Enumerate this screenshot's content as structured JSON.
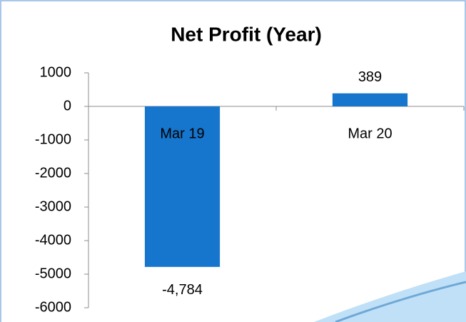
{
  "chart_data": {
    "type": "bar",
    "title": "Net Profit (Year)",
    "categories": [
      "Mar 19",
      "Mar 20"
    ],
    "values": [
      -4784,
      389
    ],
    "value_labels": [
      "-4,784",
      "389"
    ],
    "color": "#1675cc",
    "ylim": [
      -6000,
      1000
    ],
    "yticks": [
      -6000,
      -5000,
      -4000,
      -3000,
      -2000,
      -1000,
      0,
      1000
    ],
    "grid": false
  }
}
